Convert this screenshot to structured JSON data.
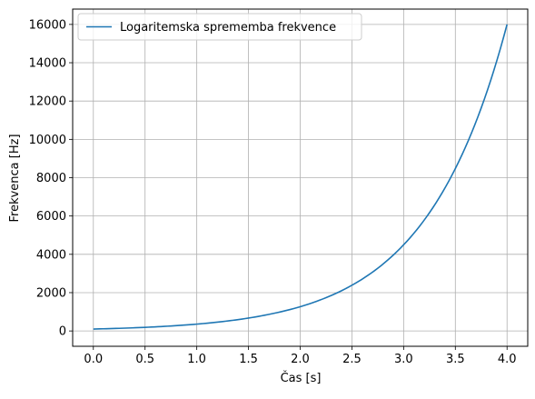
{
  "chart_data": {
    "type": "line",
    "title": "",
    "xlabel": "Čas [s]",
    "ylabel": "Frekvenca [Hz]",
    "xlim": [
      -0.2,
      4.2
    ],
    "ylim": [
      -800,
      16800
    ],
    "grid": true,
    "legend_position": "upper-left",
    "x_ticks": [
      0.0,
      0.5,
      1.0,
      1.5,
      2.0,
      2.5,
      3.0,
      3.5,
      4.0
    ],
    "x_tick_labels": [
      "0.0",
      "0.5",
      "1.0",
      "1.5",
      "2.0",
      "2.5",
      "3.0",
      "3.5",
      "4.0"
    ],
    "y_ticks": [
      0,
      2000,
      4000,
      6000,
      8000,
      10000,
      12000,
      14000,
      16000
    ],
    "y_tick_labels": [
      "0",
      "2000",
      "4000",
      "6000",
      "8000",
      "10000",
      "12000",
      "14000",
      "16000"
    ],
    "series": [
      {
        "name": "Logaritemska sprememba frekvence",
        "color": "#1f77b4",
        "x": [
          0.0,
          0.25,
          0.5,
          0.75,
          1.0,
          1.25,
          1.5,
          1.75,
          2.0,
          2.25,
          2.5,
          2.75,
          3.0,
          3.25,
          3.5,
          3.75,
          4.0
        ],
        "y": [
          100,
          137,
          189,
          260,
          356,
          490,
          673,
          925,
          1265,
          1737,
          2385,
          3274,
          4496,
          6173,
          8475,
          11637,
          16000
        ]
      }
    ]
  }
}
